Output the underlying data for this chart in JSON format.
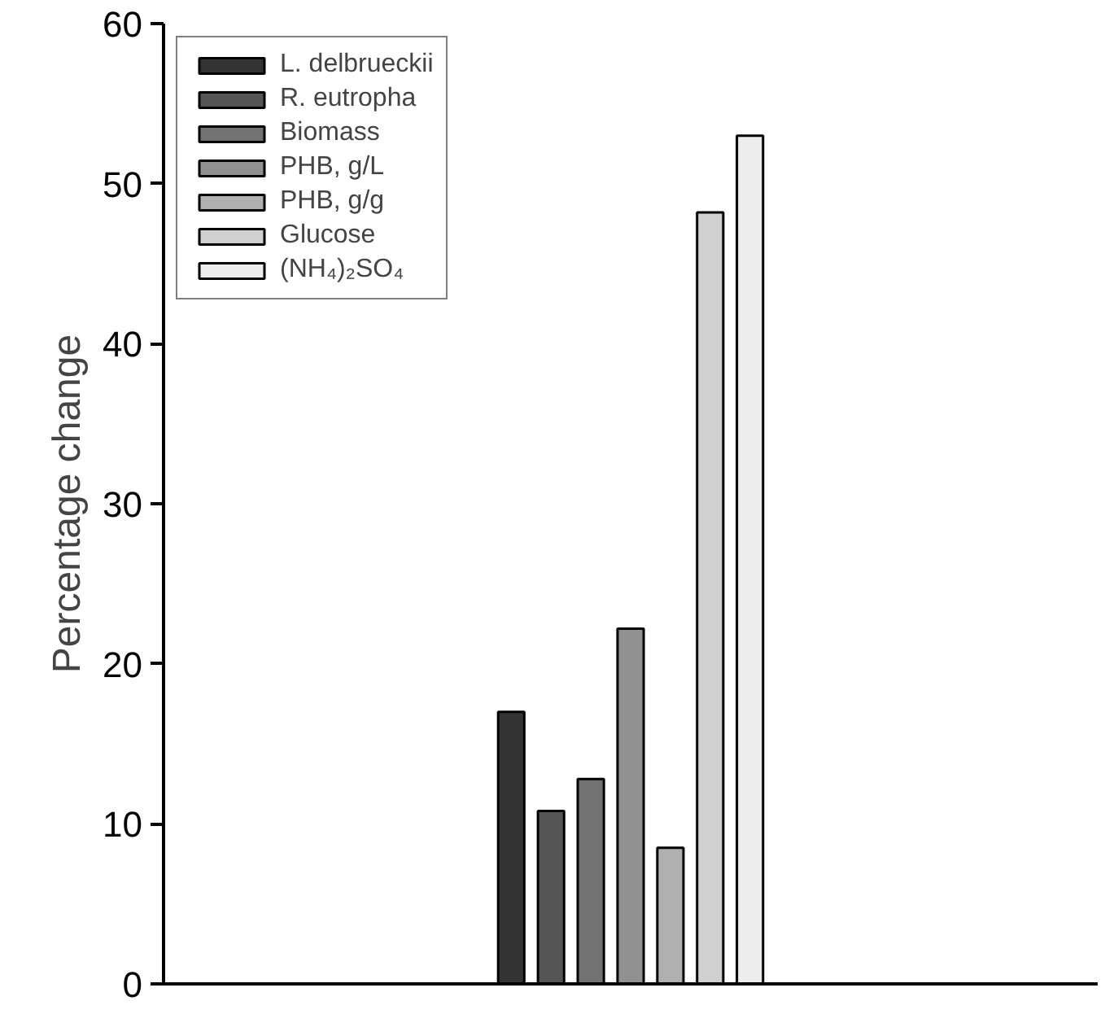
{
  "chart_data": {
    "type": "bar",
    "ylabel": "Percentage change",
    "categories": [
      null
    ],
    "series": [
      {
        "name": "L. delbrueckii",
        "color": "#333333",
        "values": [
          17.0
        ]
      },
      {
        "name": "R. eutropha",
        "color": "#555555",
        "values": [
          10.8
        ]
      },
      {
        "name": "Biomass",
        "color": "#727272",
        "values": [
          12.8
        ]
      },
      {
        "name": "PHB, g/L",
        "color": "#919191",
        "values": [
          22.2
        ]
      },
      {
        "name": "PHB, g/g",
        "color": "#b0b0b0",
        "values": [
          8.5
        ]
      },
      {
        "name": "Glucose",
        "color": "#d0d0d0",
        "values": [
          48.2
        ]
      },
      {
        "name": "(NH₄)₂SO₄",
        "color": "#ededed",
        "values": [
          53.0
        ]
      }
    ],
    "ylim": [
      0,
      60
    ],
    "yticks": [
      0,
      10,
      20,
      30,
      40,
      50,
      60
    ],
    "grid": false,
    "legend": "top left"
  }
}
